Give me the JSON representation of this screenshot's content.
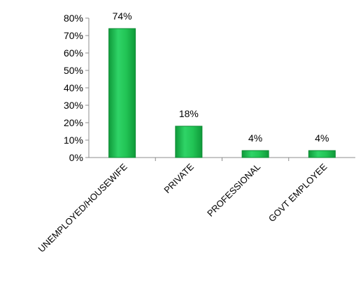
{
  "chart_data": {
    "type": "bar",
    "categories": [
      "UNEMPLOYED/HOUSEWIFE",
      "PRIVATE",
      "PROFESSIONAL",
      "GOVT EMPLOYEE"
    ],
    "values": [
      74,
      18,
      4,
      4
    ],
    "data_labels": [
      "74%",
      "18%",
      "4%",
      "4%"
    ],
    "ytick_labels": [
      "0%",
      "10%",
      "20%",
      "30%",
      "40%",
      "50%",
      "60%",
      "70%",
      "80%"
    ],
    "ylim": [
      0,
      80
    ],
    "title": "",
    "xlabel": "",
    "ylabel": "",
    "grid": false,
    "legend": "none",
    "bar_color": "#1fbe4f",
    "bar_edge_color": "#0f8a34"
  }
}
